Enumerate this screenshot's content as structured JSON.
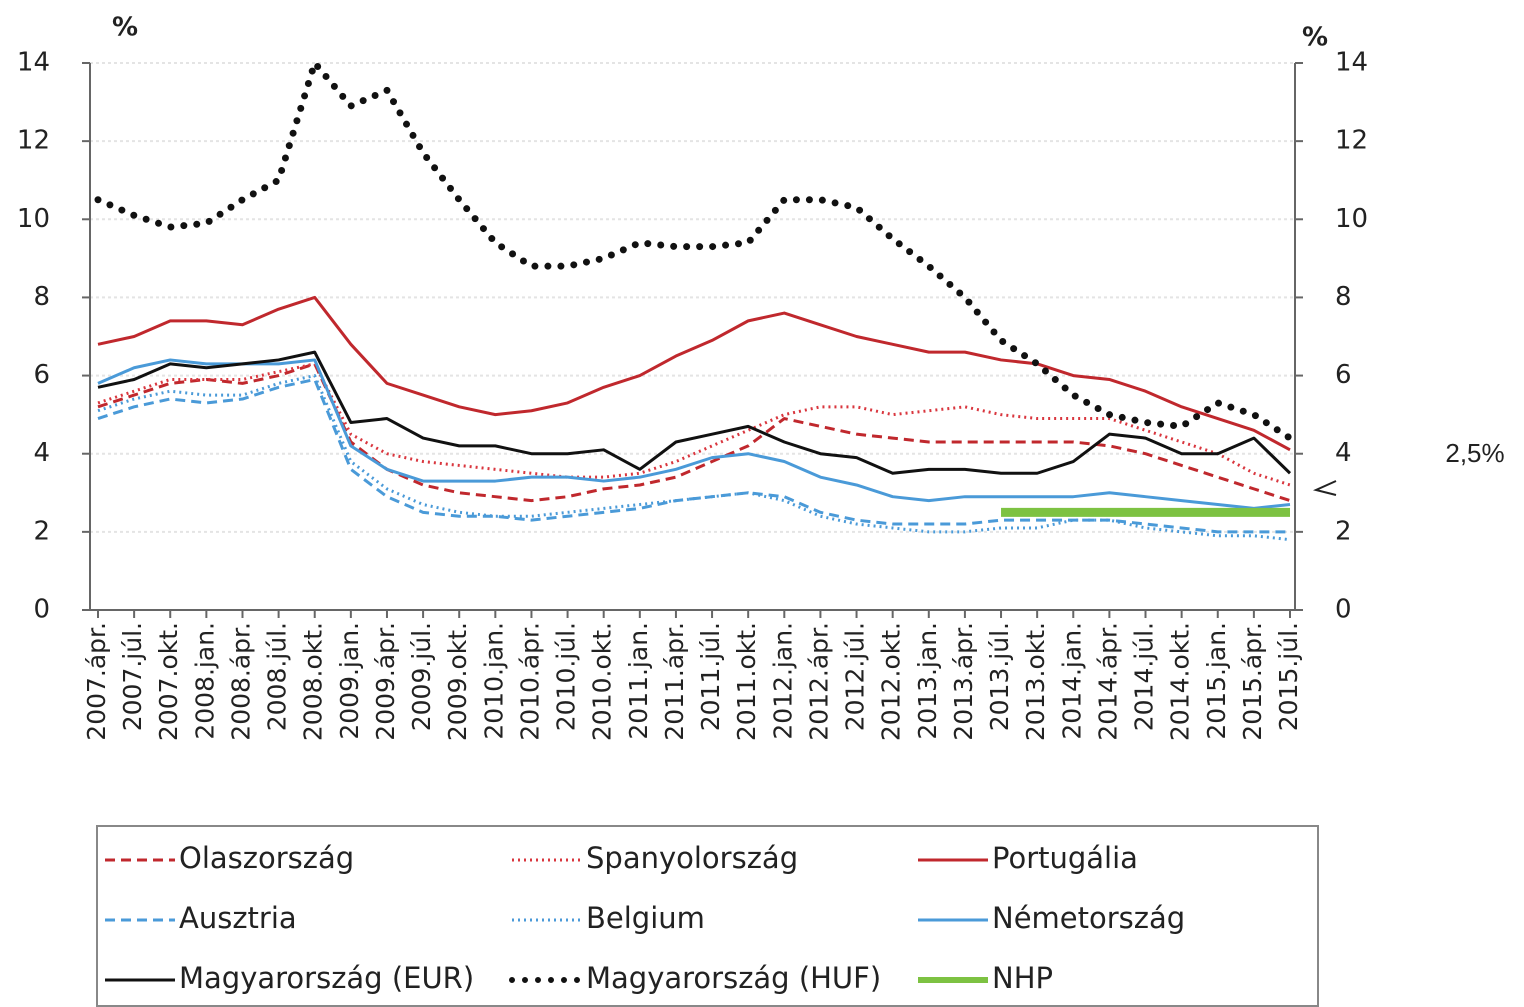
{
  "chart_data": {
    "type": "line",
    "y_unit_left": "%",
    "y_unit_right": "%",
    "annotation": "2,5%",
    "categories": [
      "2007.ápr.",
      "2007.júl.",
      "2007.okt.",
      "2008.jan.",
      "2008.ápr.",
      "2008.júl.",
      "2008.okt.",
      "2009.jan.",
      "2009.ápr.",
      "2009.júl.",
      "2009.okt.",
      "2010.jan.",
      "2010.ápr.",
      "2010.júl.",
      "2010.okt.",
      "2011.jan.",
      "2011.ápr.",
      "2011.júl.",
      "2011.okt.",
      "2012.jan.",
      "2012.ápr.",
      "2012.júl.",
      "2012.okt.",
      "2013.jan.",
      "2013.ápr.",
      "2013.júl.",
      "2013.okt.",
      "2014.jan.",
      "2014.ápr.",
      "2014.júl.",
      "2014.okt.",
      "2015.jan.",
      "2015.ápr.",
      "2015.júl."
    ],
    "series": [
      {
        "name": "Olaszország",
        "color": "#c0282d",
        "style": "dashed",
        "values": [
          5.2,
          5.5,
          5.8,
          5.9,
          5.8,
          6.0,
          6.3,
          4.3,
          3.6,
          3.2,
          3.0,
          2.9,
          2.8,
          2.9,
          3.1,
          3.2,
          3.4,
          3.8,
          4.2,
          4.9,
          4.7,
          4.5,
          4.4,
          4.3,
          4.3,
          4.3,
          4.3,
          4.3,
          4.2,
          4.0,
          3.7,
          3.4,
          3.1,
          2.8
        ]
      },
      {
        "name": "Spanyolország",
        "color": "#d9363e",
        "style": "dotted",
        "values": [
          5.3,
          5.6,
          5.9,
          5.9,
          5.9,
          6.1,
          6.3,
          4.5,
          4.0,
          3.8,
          3.7,
          3.6,
          3.5,
          3.4,
          3.4,
          3.5,
          3.8,
          4.2,
          4.6,
          5.0,
          5.2,
          5.2,
          5.0,
          5.1,
          5.2,
          5.0,
          4.9,
          4.9,
          4.9,
          4.6,
          4.3,
          4.0,
          3.5,
          3.2
        ]
      },
      {
        "name": "Portugália",
        "color": "#c0282d",
        "style": "solid",
        "values": [
          6.8,
          7.0,
          7.4,
          7.4,
          7.3,
          7.7,
          8.0,
          6.8,
          5.8,
          5.5,
          5.2,
          5.0,
          5.1,
          5.3,
          5.7,
          6.0,
          6.5,
          6.9,
          7.4,
          7.6,
          7.3,
          7.0,
          6.8,
          6.6,
          6.6,
          6.4,
          6.3,
          6.0,
          5.9,
          5.6,
          5.2,
          4.9,
          4.6,
          4.1
        ]
      },
      {
        "name": "Ausztria",
        "color": "#4a9ad8",
        "style": "dashed",
        "values": [
          4.9,
          5.2,
          5.4,
          5.3,
          5.4,
          5.7,
          5.9,
          3.6,
          2.9,
          2.5,
          2.4,
          2.4,
          2.3,
          2.4,
          2.5,
          2.6,
          2.8,
          2.9,
          3.0,
          2.9,
          2.5,
          2.3,
          2.2,
          2.2,
          2.2,
          2.3,
          2.3,
          2.3,
          2.3,
          2.2,
          2.1,
          2.0,
          2.0,
          2.0
        ]
      },
      {
        "name": "Belgium",
        "color": "#4a9ad8",
        "style": "dotted",
        "values": [
          5.1,
          5.4,
          5.6,
          5.5,
          5.5,
          5.8,
          6.0,
          3.8,
          3.1,
          2.7,
          2.5,
          2.4,
          2.4,
          2.5,
          2.6,
          2.7,
          2.8,
          2.9,
          3.0,
          2.8,
          2.4,
          2.2,
          2.1,
          2.0,
          2.0,
          2.1,
          2.1,
          2.3,
          2.3,
          2.1,
          2.0,
          1.9,
          1.9,
          1.8
        ]
      },
      {
        "name": "Németország",
        "color": "#4a9ad8",
        "style": "solid",
        "values": [
          5.8,
          6.2,
          6.4,
          6.3,
          6.3,
          6.3,
          6.4,
          4.2,
          3.6,
          3.3,
          3.3,
          3.3,
          3.4,
          3.4,
          3.3,
          3.4,
          3.6,
          3.9,
          4.0,
          3.8,
          3.4,
          3.2,
          2.9,
          2.8,
          2.9,
          2.9,
          2.9,
          2.9,
          3.0,
          2.9,
          2.8,
          2.7,
          2.6,
          2.7
        ]
      },
      {
        "name": "Magyarország (EUR)",
        "color": "#111111",
        "style": "solid",
        "values": [
          5.7,
          5.9,
          6.3,
          6.2,
          6.3,
          6.4,
          6.6,
          4.8,
          4.9,
          4.4,
          4.2,
          4.2,
          4.0,
          4.0,
          4.1,
          3.6,
          4.3,
          4.5,
          4.7,
          4.3,
          4.0,
          3.9,
          3.5,
          3.6,
          3.6,
          3.5,
          3.5,
          3.8,
          4.5,
          4.4,
          4.0,
          4.0,
          4.4,
          3.5
        ]
      },
      {
        "name": "Magyarország (HUF)",
        "color": "#111111",
        "style": "bigdot",
        "values": [
          10.5,
          10.1,
          9.8,
          9.9,
          10.5,
          11.0,
          14.0,
          12.9,
          13.3,
          11.7,
          10.5,
          9.4,
          8.8,
          8.8,
          9.0,
          9.4,
          9.3,
          9.3,
          9.4,
          10.5,
          10.5,
          10.3,
          9.5,
          8.8,
          8.0,
          6.9,
          6.3,
          5.5,
          5.0,
          4.8,
          4.7,
          5.3,
          5.0,
          4.4
        ]
      },
      {
        "name": "NHP",
        "color": "#7dc242",
        "style": "thick",
        "values": [
          null,
          null,
          null,
          null,
          null,
          null,
          null,
          null,
          null,
          null,
          null,
          null,
          null,
          null,
          null,
          null,
          null,
          null,
          null,
          null,
          null,
          null,
          null,
          null,
          null,
          2.5,
          2.5,
          2.5,
          2.5,
          2.5,
          2.5,
          2.5,
          2.5,
          2.5
        ]
      }
    ],
    "ylim": [
      0,
      14
    ],
    "yticks": [
      0,
      2,
      4,
      6,
      8,
      10,
      12,
      14
    ],
    "y2lim": [
      0,
      14
    ],
    "y2ticks": [
      0,
      2,
      4,
      6,
      8,
      10,
      12,
      14
    ],
    "grid": true,
    "legend_position": "bottom"
  }
}
